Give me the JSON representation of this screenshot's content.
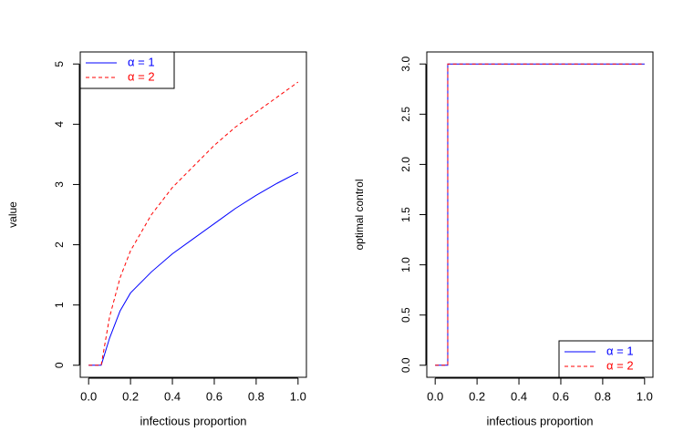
{
  "chart_data": [
    {
      "type": "line",
      "x_label": "infectious proportion",
      "y_label": "value",
      "xlim": [
        -0.04,
        1.04
      ],
      "ylim": [
        -0.2,
        5.2
      ],
      "xticks": [
        {
          "value": 0,
          "label": "0.0"
        },
        0.2,
        0.4,
        0.6,
        0.8,
        {
          "value": 1,
          "label": "1.0"
        }
      ],
      "yticks": [
        0,
        1,
        2,
        3,
        4,
        5
      ],
      "legend": "topleft",
      "x": [
        0,
        0.06,
        0.1,
        0.15,
        0.2,
        0.3,
        0.4,
        0.5,
        0.6,
        0.7,
        0.8,
        0.9,
        1.0
      ],
      "series": [
        {
          "name": "α = 1",
          "color": "#0000ff",
          "linestyle": "solid",
          "values": [
            0,
            0,
            0.45,
            0.9,
            1.2,
            1.55,
            1.85,
            2.1,
            2.35,
            2.6,
            2.82,
            3.02,
            3.2
          ]
        },
        {
          "name": "α = 2",
          "color": "#ff0000",
          "linestyle": "dashed",
          "values": [
            0,
            0,
            0.8,
            1.45,
            1.9,
            2.5,
            2.95,
            3.3,
            3.65,
            3.95,
            4.2,
            4.45,
            4.7
          ]
        }
      ]
    },
    {
      "type": "line",
      "x_label": "infectious proportion",
      "y_label": "optimal control",
      "xlim": [
        -0.04,
        1.04
      ],
      "ylim": [
        -0.12,
        3.12
      ],
      "xticks": [
        {
          "value": 0,
          "label": "0.0"
        },
        0.2,
        0.4,
        0.6,
        0.8,
        {
          "value": 1,
          "label": "1.0"
        }
      ],
      "yticks": [
        {
          "value": 0,
          "label": "0.0"
        },
        0.5,
        {
          "value": 1,
          "label": "1.0"
        },
        1.5,
        {
          "value": 2,
          "label": "2.0"
        },
        2.5,
        {
          "value": 3,
          "label": "3.0"
        }
      ],
      "legend": "bottomright",
      "x": [
        0,
        0.06,
        0.06,
        1.0
      ],
      "series": [
        {
          "name": "α = 1",
          "color": "#0000ff",
          "linestyle": "solid",
          "values": [
            0,
            0,
            3,
            3
          ]
        },
        {
          "name": "α = 2",
          "color": "#ff0000",
          "linestyle": "dashed",
          "values": [
            0,
            0,
            3,
            3
          ]
        }
      ]
    }
  ]
}
